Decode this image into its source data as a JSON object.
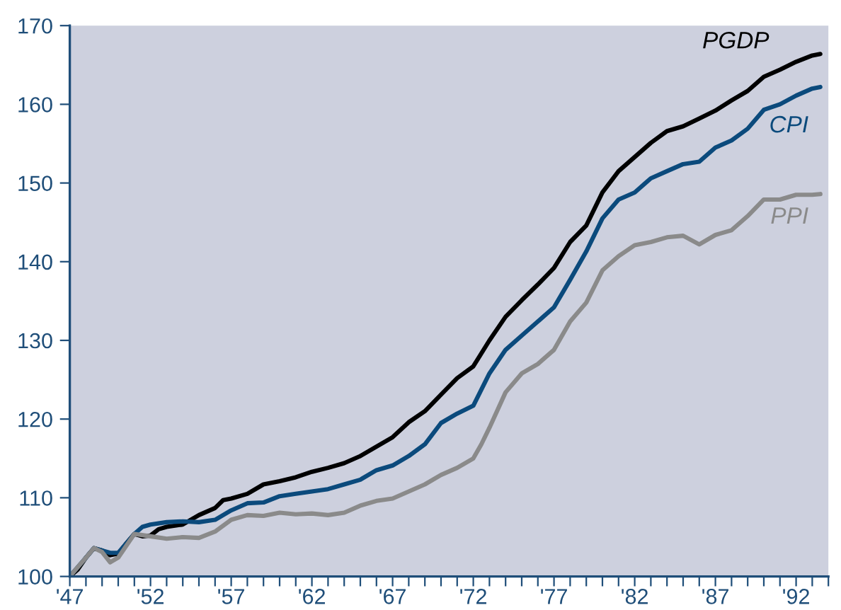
{
  "chart_data": {
    "type": "line",
    "xlim": [
      1947,
      1994
    ],
    "ylim": [
      100,
      170
    ],
    "yticks": [
      100,
      110,
      120,
      130,
      140,
      150,
      160,
      170
    ],
    "xticks": [
      {
        "value": 1947,
        "label": "'47"
      },
      {
        "value": 1948,
        "label": null
      },
      {
        "value": 1949,
        "label": null
      },
      {
        "value": 1950,
        "label": null
      },
      {
        "value": 1951,
        "label": null
      },
      {
        "value": 1952,
        "label": "'52"
      },
      {
        "value": 1953,
        "label": null
      },
      {
        "value": 1954,
        "label": null
      },
      {
        "value": 1955,
        "label": null
      },
      {
        "value": 1956,
        "label": null
      },
      {
        "value": 1957,
        "label": "'57"
      },
      {
        "value": 1958,
        "label": null
      },
      {
        "value": 1959,
        "label": null
      },
      {
        "value": 1960,
        "label": null
      },
      {
        "value": 1961,
        "label": null
      },
      {
        "value": 1962,
        "label": "'62"
      },
      {
        "value": 1963,
        "label": null
      },
      {
        "value": 1964,
        "label": null
      },
      {
        "value": 1965,
        "label": null
      },
      {
        "value": 1966,
        "label": null
      },
      {
        "value": 1967,
        "label": "'67"
      },
      {
        "value": 1968,
        "label": null
      },
      {
        "value": 1969,
        "label": null
      },
      {
        "value": 1970,
        "label": null
      },
      {
        "value": 1971,
        "label": null
      },
      {
        "value": 1972,
        "label": "'72"
      },
      {
        "value": 1973,
        "label": null
      },
      {
        "value": 1974,
        "label": null
      },
      {
        "value": 1975,
        "label": null
      },
      {
        "value": 1976,
        "label": null
      },
      {
        "value": 1977,
        "label": "'77"
      },
      {
        "value": 1978,
        "label": null
      },
      {
        "value": 1979,
        "label": null
      },
      {
        "value": 1980,
        "label": null
      },
      {
        "value": 1981,
        "label": null
      },
      {
        "value": 1982,
        "label": "'82"
      },
      {
        "value": 1983,
        "label": null
      },
      {
        "value": 1984,
        "label": null
      },
      {
        "value": 1985,
        "label": null
      },
      {
        "value": 1986,
        "label": null
      },
      {
        "value": 1987,
        "label": "'87"
      },
      {
        "value": 1988,
        "label": null
      },
      {
        "value": 1989,
        "label": null
      },
      {
        "value": 1990,
        "label": null
      },
      {
        "value": 1991,
        "label": null
      },
      {
        "value": 1992,
        "label": "'92"
      },
      {
        "value": 1993,
        "label": null
      },
      {
        "value": 1994,
        "label": null
      }
    ],
    "grid": false,
    "legend": false,
    "line_style": "solid",
    "marker": "none",
    "series": [
      {
        "name": "PGDP",
        "color": "#000000",
        "x": [
          1947,
          1947.5,
          1948,
          1948.5,
          1949,
          1949.5,
          1950,
          1950.5,
          1951,
          1951.5,
          1952,
          1952.5,
          1953,
          1954,
          1955,
          1956,
          1956.5,
          1957,
          1958,
          1959,
          1960,
          1961,
          1962,
          1963,
          1964,
          1965,
          1966,
          1967,
          1968,
          1969,
          1970,
          1971,
          1972,
          1973,
          1974,
          1975,
          1976,
          1977,
          1978,
          1979,
          1980,
          1981,
          1982,
          1983,
          1984,
          1985,
          1986,
          1987,
          1988,
          1989,
          1990,
          1991,
          1992,
          1993,
          1993.5
        ],
        "values": [
          100,
          100.9,
          102.4,
          103.6,
          103.3,
          102.7,
          102.9,
          104.2,
          105.4,
          105.1,
          105.2,
          106,
          106.3,
          106.6,
          107.8,
          108.7,
          109.7,
          109.9,
          110.5,
          111.7,
          112.1,
          112.6,
          113.3,
          113.8,
          114.4,
          115.3,
          116.5,
          117.7,
          119.6,
          121,
          123.1,
          125.2,
          126.7,
          130,
          133,
          135.1,
          137.1,
          139.2,
          142.5,
          144.6,
          148.8,
          151.5,
          153.3,
          155.1,
          156.6,
          157.2,
          158.2,
          159.2,
          160.5,
          161.7,
          163.5,
          164.4,
          165.4,
          166.2,
          166.4
        ]
      },
      {
        "name": "CPI",
        "color": "#0b4a7c",
        "x": [
          1947,
          1948,
          1948.5,
          1949,
          1949.5,
          1950,
          1951,
          1951.5,
          1952,
          1953,
          1954,
          1955,
          1956,
          1957,
          1958,
          1959,
          1960,
          1961,
          1962,
          1963,
          1964,
          1965,
          1966,
          1967,
          1968,
          1969,
          1970,
          1971,
          1972,
          1973,
          1974,
          1975,
          1976,
          1977,
          1978,
          1979,
          1980,
          1981,
          1982,
          1983,
          1984,
          1985,
          1986,
          1987,
          1988,
          1989,
          1990,
          1991,
          1992,
          1993,
          1993.5
        ],
        "values": [
          100,
          102.4,
          103.6,
          103.3,
          103,
          103,
          105.4,
          106.3,
          106.6,
          106.9,
          107,
          106.9,
          107.2,
          108.4,
          109.3,
          109.4,
          110.2,
          110.5,
          110.8,
          111.1,
          111.7,
          112.3,
          113.5,
          114.1,
          115.3,
          116.8,
          119.5,
          120.7,
          121.7,
          125.8,
          128.8,
          130.6,
          132.4,
          134.2,
          137.7,
          141.3,
          145.5,
          147.9,
          148.8,
          150.6,
          151.5,
          152.4,
          152.7,
          154.5,
          155.4,
          156.9,
          159.3,
          160,
          161.1,
          162,
          162.2
        ]
      },
      {
        "name": "PPI",
        "color": "#8a8a8a",
        "x": [
          1947,
          1948,
          1948.5,
          1949,
          1949.5,
          1950,
          1951,
          1952,
          1953,
          1954,
          1955,
          1956,
          1957,
          1958,
          1959,
          1960,
          1961,
          1962,
          1963,
          1964,
          1965,
          1966,
          1967,
          1968,
          1969,
          1970,
          1971,
          1972,
          1972.5,
          1973,
          1974,
          1975,
          1976,
          1977,
          1978,
          1979,
          1980,
          1981,
          1982,
          1983,
          1984,
          1985,
          1986,
          1987,
          1988,
          1989,
          1990,
          1991,
          1992,
          1993,
          1993.5
        ],
        "values": [
          100,
          102.4,
          103.6,
          103.1,
          101.8,
          102.4,
          105.4,
          105.1,
          104.8,
          105,
          104.9,
          105.7,
          107.2,
          107.8,
          107.7,
          108.1,
          107.9,
          108,
          107.8,
          108.1,
          109,
          109.6,
          109.9,
          110.8,
          111.7,
          112.9,
          113.8,
          115,
          116.8,
          118.9,
          123.4,
          125.8,
          127,
          128.8,
          132.4,
          134.8,
          138.9,
          140.7,
          142.1,
          142.5,
          143.1,
          143.3,
          142.2,
          143.4,
          144,
          145.8,
          147.9,
          147.9,
          148.5,
          148.5,
          148.6
        ]
      }
    ]
  }
}
